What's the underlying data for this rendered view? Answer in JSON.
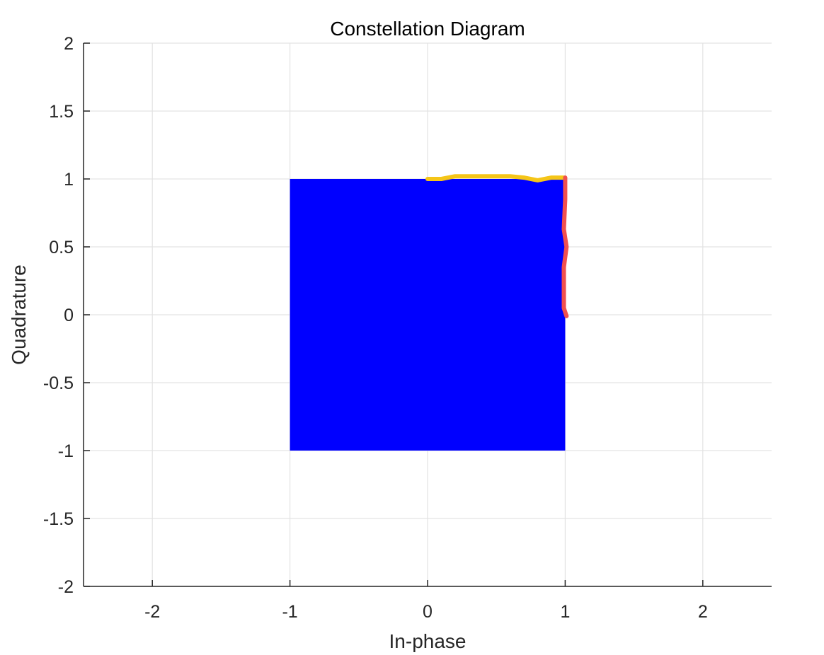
{
  "chart_data": {
    "type": "scatter",
    "title": "Constellation Diagram",
    "xlabel": "In-phase",
    "ylabel": "Quadrature",
    "xlim": [
      -2.5,
      2.5
    ],
    "ylim": [
      -2,
      2
    ],
    "grid": true,
    "x_ticks": [
      {
        "value": -2,
        "label": "-2"
      },
      {
        "value": -1,
        "label": "-1"
      },
      {
        "value": 0,
        "label": "0"
      },
      {
        "value": 1,
        "label": "1"
      },
      {
        "value": 2,
        "label": "2"
      }
    ],
    "y_ticks": [
      {
        "value": 2,
        "label": "2"
      },
      {
        "value": 1.5,
        "label": "1.5"
      },
      {
        "value": 1,
        "label": "1"
      },
      {
        "value": 0.5,
        "label": "0.5"
      },
      {
        "value": 0,
        "label": "0"
      },
      {
        "value": -0.5,
        "label": "-0.5"
      },
      {
        "value": -1,
        "label": "-1"
      },
      {
        "value": -1.5,
        "label": "-1.5"
      },
      {
        "value": -2,
        "label": "-2"
      }
    ],
    "filled_region": {
      "color": "#0000ff",
      "x_range": [
        -1,
        1
      ],
      "y_range": [
        -1,
        1
      ]
    },
    "annotations": [
      {
        "color": "#f5c518",
        "points": [
          [
            0,
            1.0
          ],
          [
            0.1,
            1.0
          ],
          [
            0.2,
            1.02
          ],
          [
            0.4,
            1.02
          ],
          [
            0.6,
            1.02
          ],
          [
            0.7,
            1.01
          ],
          [
            0.8,
            0.99
          ],
          [
            0.9,
            1.01
          ],
          [
            1.0,
            1.01
          ]
        ]
      },
      {
        "color": "#f05050",
        "points": [
          [
            1.0,
            1.01
          ],
          [
            1.0,
            0.85
          ],
          [
            0.99,
            0.63
          ],
          [
            1.01,
            0.5
          ],
          [
            0.99,
            0.35
          ],
          [
            0.99,
            0.2
          ],
          [
            0.99,
            0.05
          ],
          [
            1.01,
            -0.01
          ]
        ]
      }
    ],
    "colors": {
      "axis": "#262626",
      "grid": "#e3e3e3"
    }
  }
}
